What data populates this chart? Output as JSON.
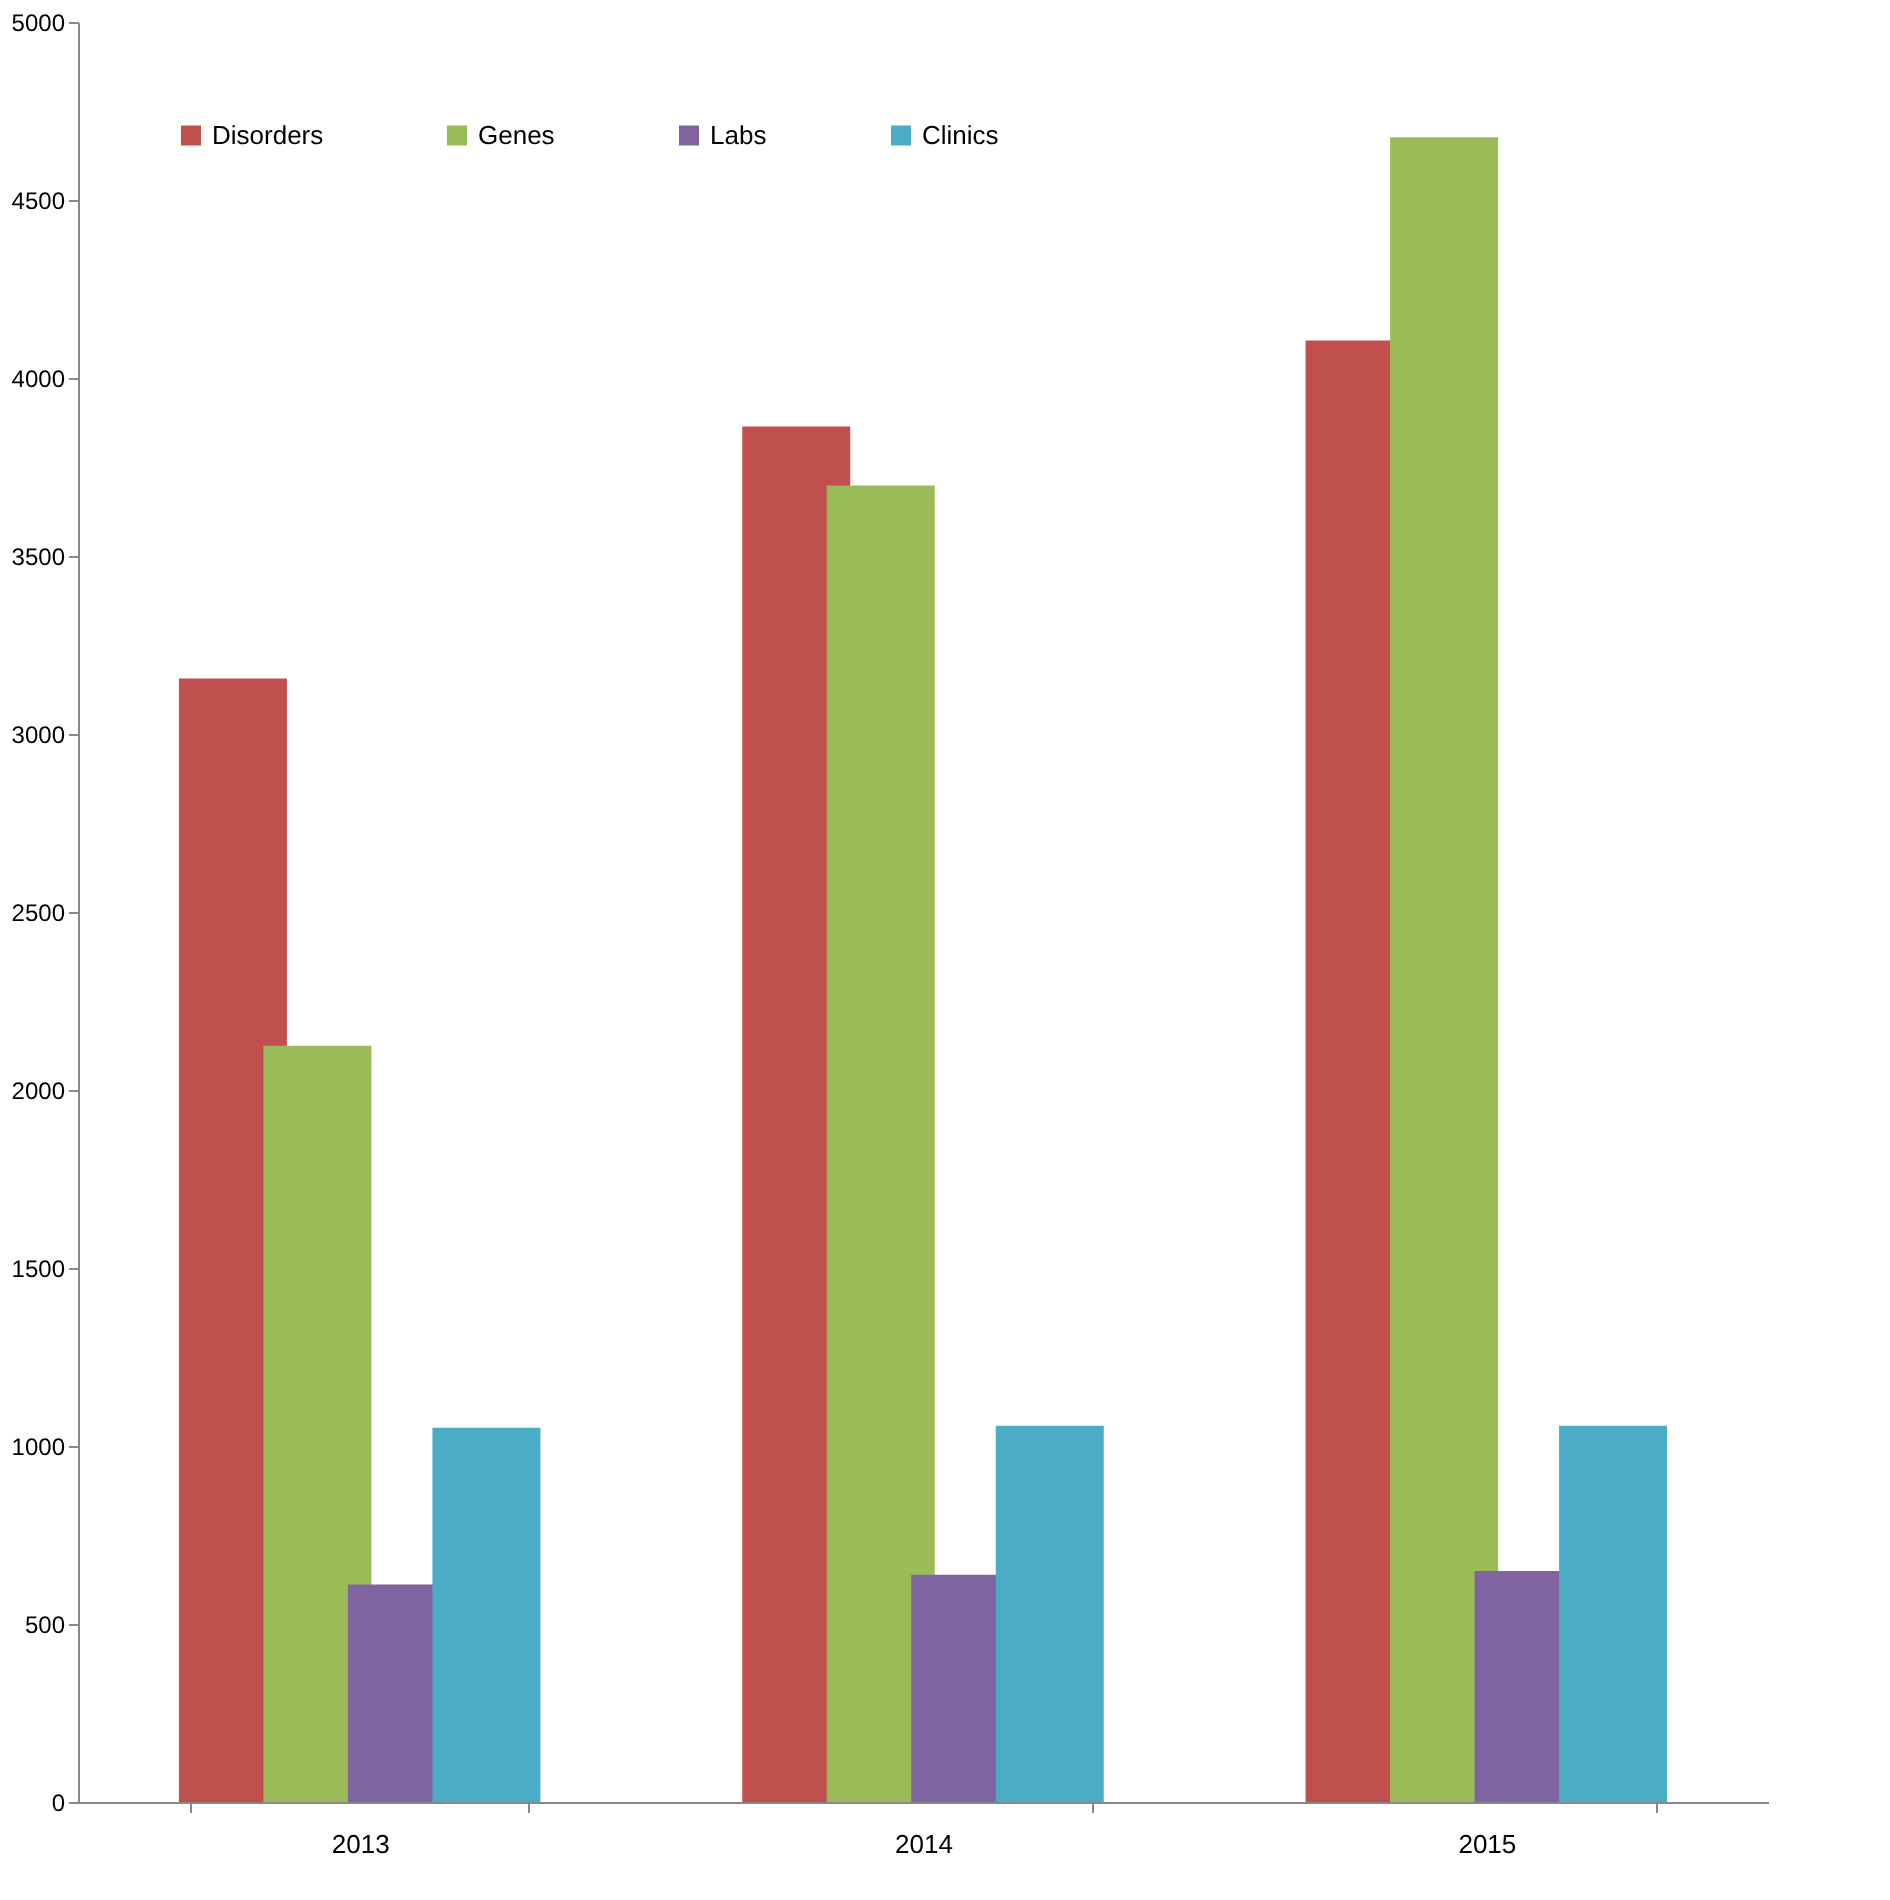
{
  "chart_data": {
    "type": "bar",
    "categories": [
      "2013",
      "2014",
      "2015"
    ],
    "series": [
      {
        "name": "Disorders",
        "color": "#c0504d",
        "values": [
          3156,
          3864,
          4105
        ]
      },
      {
        "name": "Genes",
        "color": "#9bbb59",
        "values": [
          2124,
          3698,
          4676
        ]
      },
      {
        "name": "Labs",
        "color": "#8064a2",
        "values": [
          611,
          638,
          649
        ]
      },
      {
        "name": "Clinics",
        "color": "#4bacc6",
        "values": [
          1051,
          1057,
          1057
        ]
      }
    ],
    "ylim": [
      0,
      5000
    ],
    "yticks": [
      0,
      500,
      1000,
      1500,
      2000,
      2500,
      3000,
      3500,
      4000,
      4500,
      5000
    ],
    "grid": false,
    "legend": "top left"
  }
}
